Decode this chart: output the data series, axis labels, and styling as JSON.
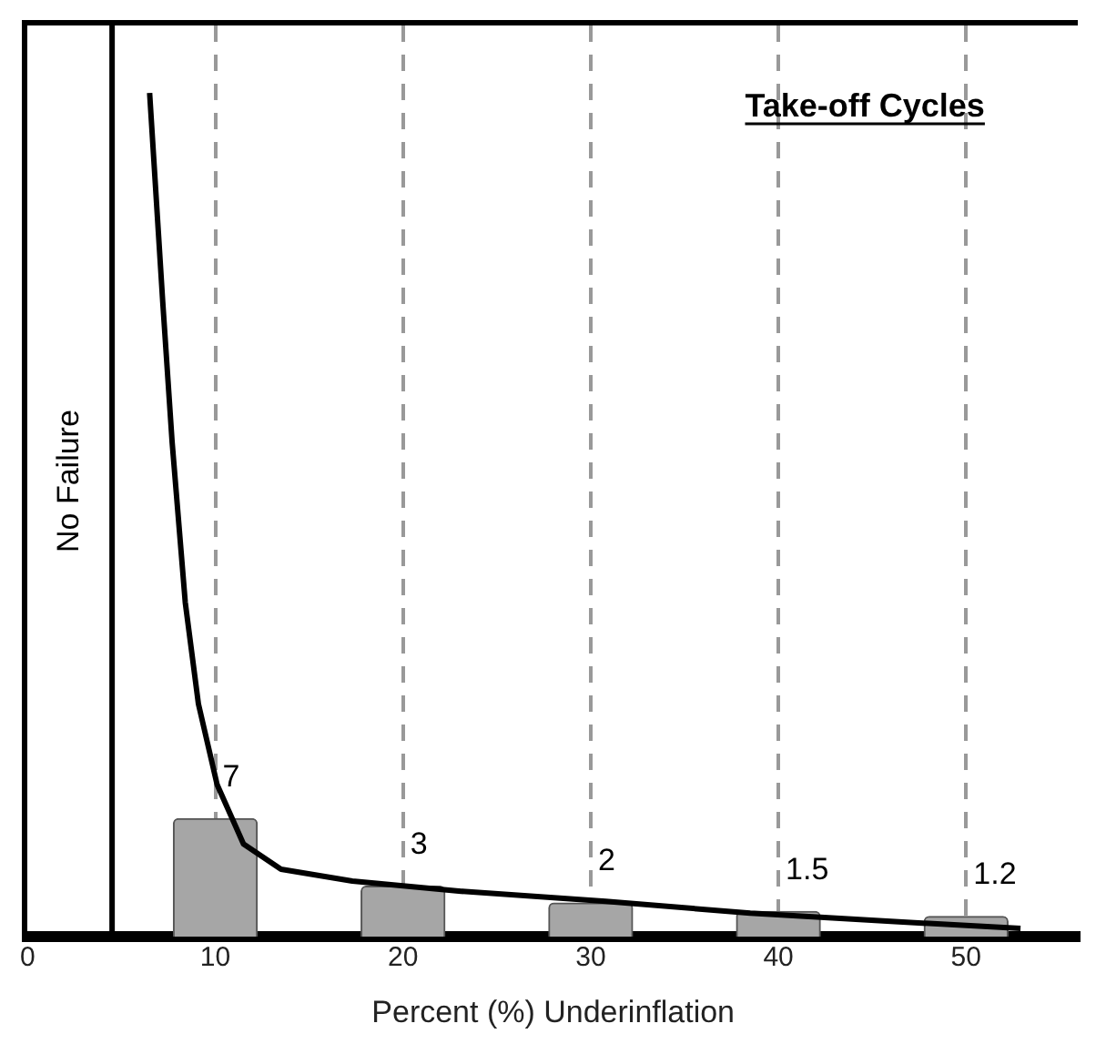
{
  "chart_data": {
    "type": "bar",
    "xlabel": "Percent (%) Underinflation",
    "annotations": [
      "Take-off Cycles"
    ],
    "x": [
      10,
      20,
      30,
      40,
      50
    ],
    "series": [
      {
        "color": "#a6a6a6",
        "values": [
          7,
          3,
          2,
          1.5,
          1.2
        ],
        "value_labels": [
          "7",
          "3",
          "2",
          "1.5",
          "1.2"
        ]
      },
      {
        "type": "line",
        "color": "#000000",
        "marker": "none",
        "x": [
          6.5,
          7.2,
          7.7,
          8.4,
          9.1,
          10.1,
          11.5,
          13.5,
          17.3,
          23.1,
          30.8,
          38.5,
          46.2,
          52.9
        ],
        "values": [
          50,
          37.6,
          29.3,
          19.8,
          13.8,
          9,
          5.5,
          4,
          3.3,
          2.7,
          2.1,
          1.4,
          0.9,
          0.5
        ]
      }
    ],
    "xlim": [
      0,
      56
    ],
    "xticks": [
      0,
      10,
      20,
      30,
      40,
      50
    ],
    "ylim": [
      0,
      54
    ],
    "tick_labels": "x",
    "grid": "x",
    "ref_lines": [
      {
        "axis": "x",
        "value": 4.5,
        "label": "No Failure",
        "color": "#000000"
      }
    ],
    "legend": false
  }
}
